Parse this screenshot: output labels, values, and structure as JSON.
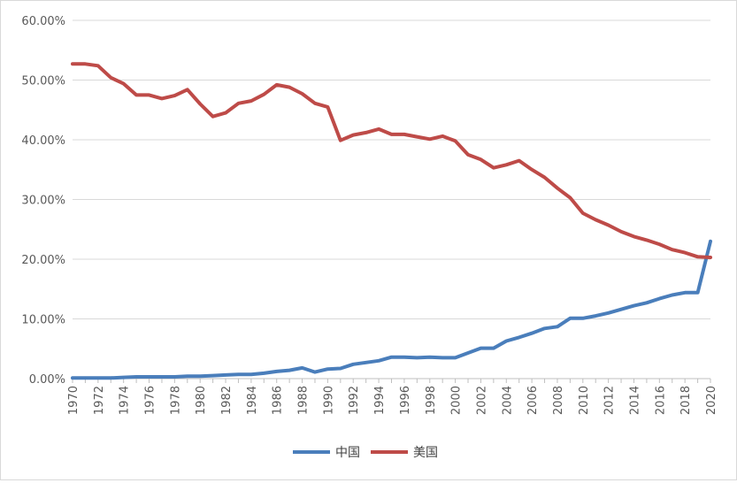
{
  "chart_data": {
    "type": "line",
    "title": "",
    "xlabel": "",
    "ylabel": "",
    "ylim": [
      0,
      0.6
    ],
    "y_ticks": [
      0,
      0.1,
      0.2,
      0.3,
      0.4,
      0.5,
      0.6
    ],
    "y_tick_labels": [
      "0.00%",
      "10.00%",
      "20.00%",
      "30.00%",
      "40.00%",
      "50.00%",
      "60.00%"
    ],
    "x": [
      1970,
      1971,
      1972,
      1973,
      1974,
      1975,
      1976,
      1977,
      1978,
      1979,
      1980,
      1981,
      1982,
      1983,
      1984,
      1985,
      1986,
      1987,
      1988,
      1989,
      1990,
      1991,
      1992,
      1993,
      1994,
      1995,
      1996,
      1997,
      1998,
      1999,
      2000,
      2001,
      2002,
      2003,
      2004,
      2005,
      2006,
      2007,
      2008,
      2009,
      2010,
      2011,
      2012,
      2013,
      2014,
      2015,
      2016,
      2017,
      2018,
      2019,
      2020
    ],
    "x_tick_labels": [
      "1970",
      "1972",
      "1974",
      "1976",
      "1978",
      "1980",
      "1982",
      "1984",
      "1986",
      "1988",
      "1990",
      "1992",
      "1994",
      "1996",
      "1998",
      "2000",
      "2002",
      "2004",
      "2006",
      "2008",
      "2010",
      "2012",
      "2014",
      "2016",
      "2018",
      "2020"
    ],
    "grid": true,
    "legend_position": "bottom",
    "series": [
      {
        "name": "中国",
        "color": "#4a7ebb",
        "values": [
          0.001,
          0.001,
          0.001,
          0.001,
          0.002,
          0.003,
          0.003,
          0.003,
          0.003,
          0.004,
          0.004,
          0.005,
          0.006,
          0.007,
          0.007,
          0.009,
          0.012,
          0.014,
          0.018,
          0.011,
          0.016,
          0.017,
          0.024,
          0.027,
          0.03,
          0.036,
          0.036,
          0.035,
          0.036,
          0.035,
          0.035,
          0.043,
          0.051,
          0.051,
          0.063,
          0.069,
          0.076,
          0.084,
          0.087,
          0.101,
          0.101,
          0.105,
          0.11,
          0.116,
          0.122,
          0.127,
          0.134,
          0.14,
          0.144,
          0.144,
          0.23
        ]
      },
      {
        "name": "美国",
        "color": "#be4b48",
        "values": [
          0.527,
          0.527,
          0.524,
          0.504,
          0.494,
          0.475,
          0.475,
          0.469,
          0.474,
          0.484,
          0.46,
          0.439,
          0.445,
          0.461,
          0.465,
          0.476,
          0.492,
          0.488,
          0.477,
          0.461,
          0.455,
          0.399,
          0.408,
          0.412,
          0.418,
          0.409,
          0.409,
          0.405,
          0.401,
          0.406,
          0.398,
          0.375,
          0.367,
          0.353,
          0.358,
          0.365,
          0.35,
          0.337,
          0.319,
          0.303,
          0.277,
          0.266,
          0.257,
          0.246,
          0.238,
          0.232,
          0.225,
          0.216,
          0.211,
          0.204,
          0.203
        ]
      }
    ]
  }
}
